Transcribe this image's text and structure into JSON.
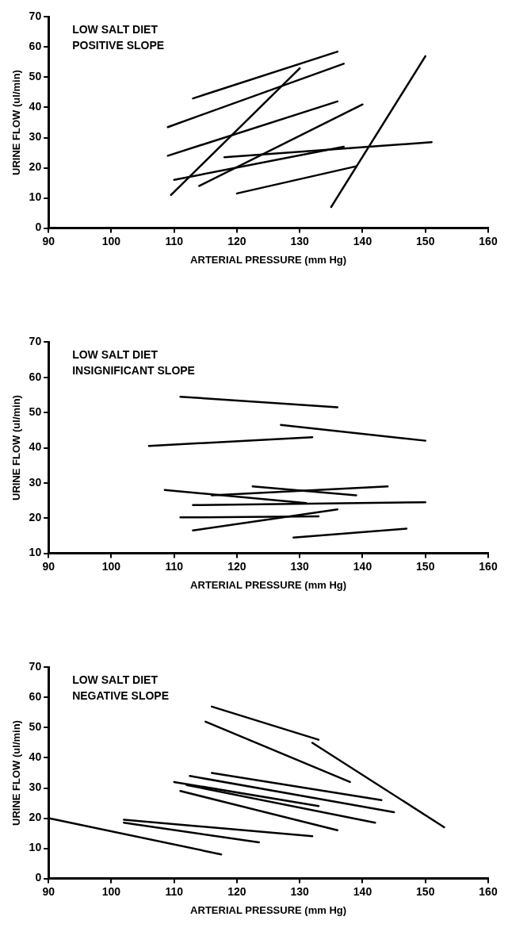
{
  "chart_data": [
    {
      "type": "line",
      "title": "LOW SALT DIET",
      "subtitle": "POSITIVE SLOPE",
      "xlabel": "ARTERIAL PRESSURE (mm Hg)",
      "ylabel": "URINE FLOW (ul/min)",
      "xlim": [
        90,
        160
      ],
      "xticks": [
        90,
        100,
        110,
        120,
        130,
        140,
        150,
        160
      ],
      "ylim": [
        0,
        70
      ],
      "yticks": [
        0,
        10,
        20,
        30,
        40,
        50,
        60,
        70
      ],
      "series": [
        {
          "color": "#000000",
          "x": [
            113,
            136
          ],
          "values": [
            43,
            58.5
          ]
        },
        {
          "color": "#000000",
          "x": [
            109,
            137
          ],
          "values": [
            33.5,
            54.5
          ]
        },
        {
          "color": "#000000",
          "x": [
            109,
            136
          ],
          "values": [
            24,
            42
          ]
        },
        {
          "color": "#000000",
          "x": [
            109.5,
            130
          ],
          "values": [
            11,
            53
          ]
        },
        {
          "color": "#000000",
          "x": [
            114,
            140
          ],
          "values": [
            14,
            41
          ]
        },
        {
          "color": "#000000",
          "x": [
            110,
            137
          ],
          "values": [
            16,
            27
          ]
        },
        {
          "color": "#000000",
          "x": [
            118,
            151
          ],
          "values": [
            23.5,
            28.5
          ]
        },
        {
          "color": "#000000",
          "x": [
            120,
            139
          ],
          "values": [
            11.5,
            20.5
          ]
        },
        {
          "color": "#000000",
          "x": [
            135,
            150
          ],
          "values": [
            7,
            57
          ]
        }
      ]
    },
    {
      "type": "line",
      "title": "LOW SALT DIET",
      "subtitle": "INSIGNIFICANT SLOPE",
      "xlabel": "ARTERIAL PRESSURE (mm Hg)",
      "ylabel": "URINE FLOW (ul/min)",
      "xlim": [
        90,
        160
      ],
      "xticks": [
        90,
        100,
        110,
        120,
        130,
        140,
        150,
        160
      ],
      "ylim": [
        10,
        70
      ],
      "yticks": [
        10,
        20,
        30,
        40,
        50,
        60,
        70
      ],
      "series": [
        {
          "color": "#000000",
          "x": [
            111,
            136
          ],
          "values": [
            54.5,
            51.5
          ]
        },
        {
          "color": "#000000",
          "x": [
            127,
            150
          ],
          "values": [
            46.5,
            42
          ]
        },
        {
          "color": "#000000",
          "x": [
            106,
            132
          ],
          "values": [
            40.5,
            43
          ]
        },
        {
          "color": "#000000",
          "x": [
            108.5,
            131
          ],
          "values": [
            28,
            24.3
          ]
        },
        {
          "color": "#000000",
          "x": [
            116,
            144
          ],
          "values": [
            26.5,
            29
          ]
        },
        {
          "color": "#000000",
          "x": [
            122.5,
            139
          ],
          "values": [
            29,
            26.5
          ]
        },
        {
          "color": "#000000",
          "x": [
            113,
            150
          ],
          "values": [
            23.7,
            24.5
          ]
        },
        {
          "color": "#000000",
          "x": [
            111,
            133
          ],
          "values": [
            20.2,
            20.5
          ]
        },
        {
          "color": "#000000",
          "x": [
            113,
            136
          ],
          "values": [
            16.5,
            22.5
          ]
        },
        {
          "color": "#000000",
          "x": [
            129,
            147
          ],
          "values": [
            14.5,
            17
          ]
        }
      ]
    },
    {
      "type": "line",
      "title": "LOW SALT DIET",
      "subtitle": "NEGATIVE SLOPE",
      "xlabel": "ARTERIAL PRESSURE (mm Hg)",
      "ylabel": "URINE FLOW (ul/min)",
      "xlim": [
        90,
        160
      ],
      "xticks": [
        90,
        100,
        110,
        120,
        130,
        140,
        150,
        160
      ],
      "ylim": [
        0,
        70
      ],
      "yticks": [
        0,
        10,
        20,
        30,
        40,
        50,
        60,
        70
      ],
      "series": [
        {
          "color": "#000000",
          "x": [
            116,
            133
          ],
          "values": [
            57,
            46
          ]
        },
        {
          "color": "#000000",
          "x": [
            115,
            138
          ],
          "values": [
            52,
            32
          ]
        },
        {
          "color": "#000000",
          "x": [
            132,
            153
          ],
          "values": [
            45,
            17
          ]
        },
        {
          "color": "#000000",
          "x": [
            116,
            143
          ],
          "values": [
            35,
            26
          ]
        },
        {
          "color": "#000000",
          "x": [
            112.5,
            145
          ],
          "values": [
            34,
            22
          ]
        },
        {
          "color": "#000000",
          "x": [
            110,
            133
          ],
          "values": [
            32,
            24
          ]
        },
        {
          "color": "#000000",
          "x": [
            112,
            142
          ],
          "values": [
            31,
            18.5
          ]
        },
        {
          "color": "#000000",
          "x": [
            111,
            136
          ],
          "values": [
            29,
            16
          ]
        },
        {
          "color": "#000000",
          "x": [
            102,
            132
          ],
          "values": [
            19.5,
            14
          ]
        },
        {
          "color": "#000000",
          "x": [
            102,
            123.5
          ],
          "values": [
            18.5,
            12
          ]
        },
        {
          "color": "#000000",
          "x": [
            90,
            117.5
          ],
          "values": [
            20,
            8
          ]
        }
      ]
    }
  ]
}
